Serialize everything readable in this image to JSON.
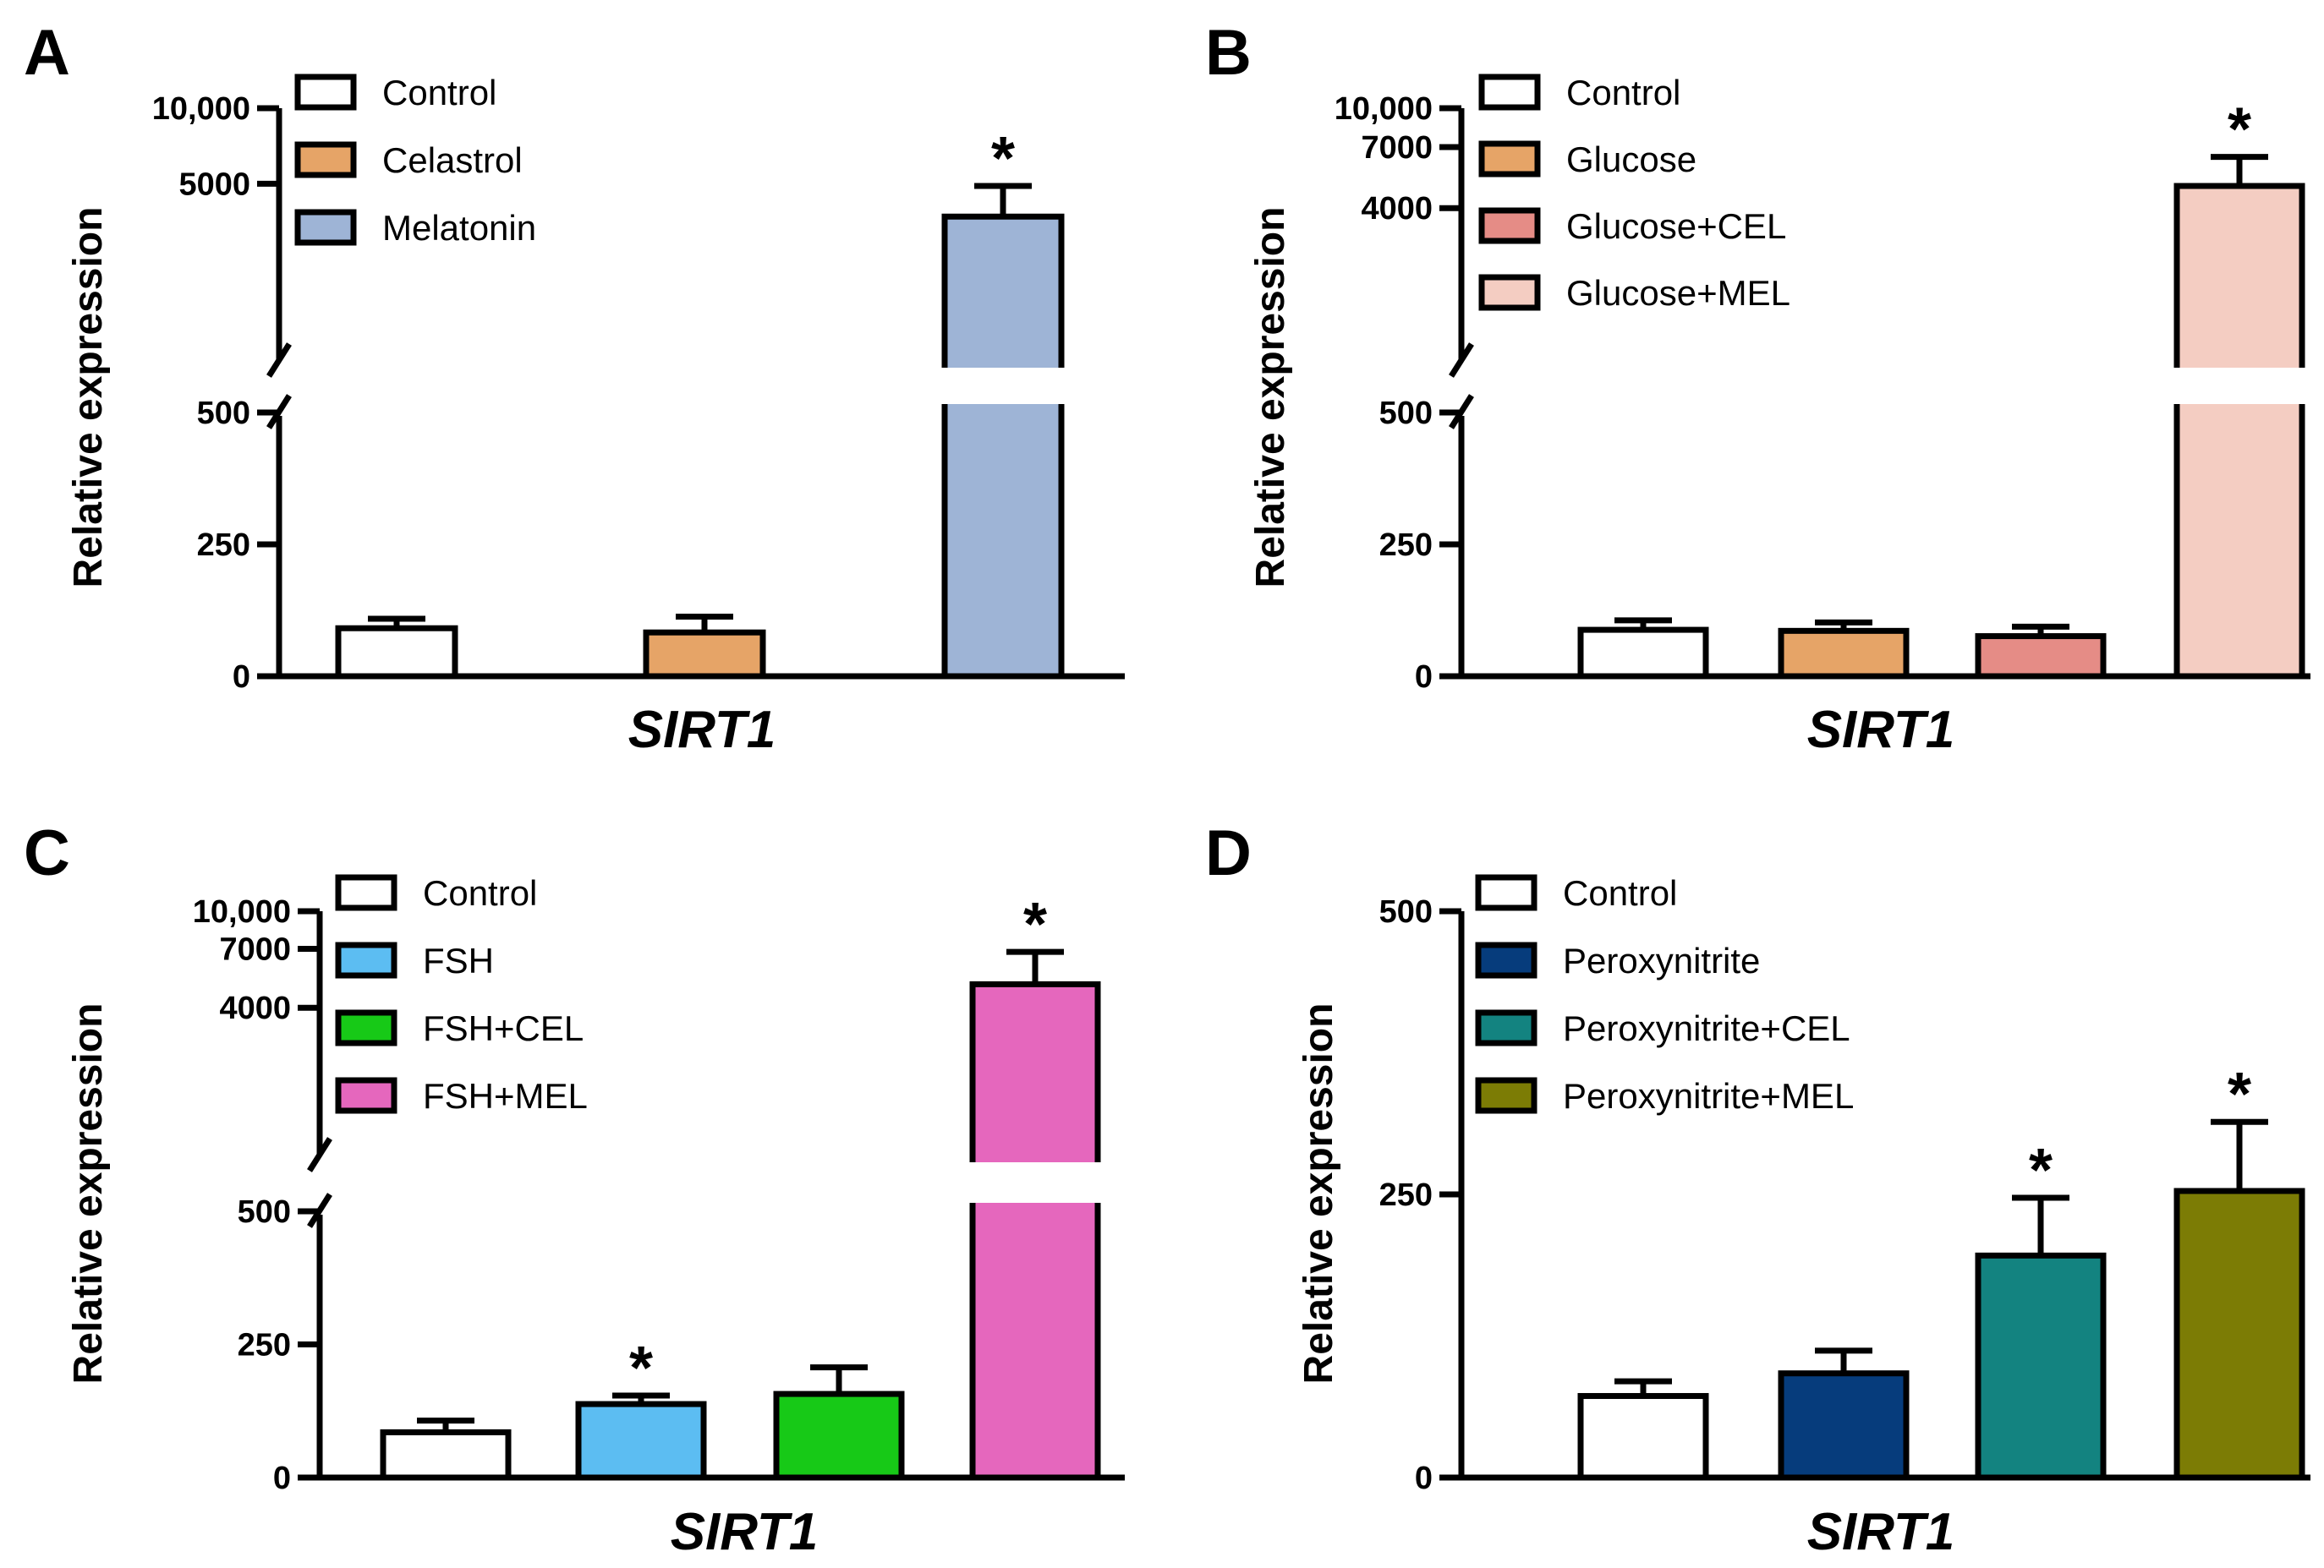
{
  "chart_data": [
    {
      "panel": "A",
      "type": "bar",
      "xlabel": "SIRT1",
      "ylabel": "Relative expression",
      "broken_axis": true,
      "lower_range": [
        0,
        500
      ],
      "lower_ticks": [
        0,
        250,
        500
      ],
      "upper_range": [
        1000,
        10000
      ],
      "upper_ticks": [
        5000,
        10000
      ],
      "upper_tick_labels": [
        "5000",
        "10,000"
      ],
      "colors": [
        "#ffffff",
        "#e6a467",
        "#9eb4d6"
      ],
      "series": [
        {
          "name": "Control",
          "value": 91,
          "error": 18,
          "sig": ""
        },
        {
          "name": "Celastrol",
          "value": 83,
          "error": 30,
          "sig": ""
        },
        {
          "name": "Melatonin",
          "value": 3700,
          "error": 1200,
          "sig": "*"
        }
      ]
    },
    {
      "panel": "B",
      "type": "bar",
      "xlabel": "SIRT1",
      "ylabel": "Relative expression",
      "broken_axis": true,
      "lower_range": [
        0,
        500
      ],
      "lower_ticks": [
        0,
        250,
        500
      ],
      "upper_range": [
        1000,
        10000
      ],
      "upper_ticks": [
        4000,
        7000,
        10000
      ],
      "upper_tick_labels": [
        "4000",
        "7000",
        "10,000"
      ],
      "colors": [
        "#ffffff",
        "#e6a467",
        "#e58c86",
        "#f4cdc2"
      ],
      "series": [
        {
          "name": "Control",
          "value": 88,
          "error": 18,
          "sig": ""
        },
        {
          "name": "Glucose",
          "value": 86,
          "error": 16,
          "sig": ""
        },
        {
          "name": "Glucose+CEL",
          "value": 76,
          "error": 18,
          "sig": ""
        },
        {
          "name": "Glucose+MEL",
          "value": 4900,
          "error": 1500,
          "sig": "*"
        }
      ]
    },
    {
      "panel": "C",
      "type": "bar",
      "xlabel": "SIRT1",
      "ylabel": "Relative expression",
      "broken_axis": true,
      "lower_range": [
        0,
        500
      ],
      "lower_ticks": [
        0,
        250,
        500
      ],
      "upper_range": [
        1000,
        10000
      ],
      "upper_ticks": [
        4000,
        7000,
        10000
      ],
      "upper_tick_labels": [
        "4000",
        "7000",
        "10,000"
      ],
      "colors": [
        "#ffffff",
        "#5cbdf2",
        "#17c917",
        "#e567bd"
      ],
      "series": [
        {
          "name": "Control",
          "value": 85,
          "error": 22,
          "sig": ""
        },
        {
          "name": "FSH",
          "value": 138,
          "error": 16,
          "sig": "*"
        },
        {
          "name": "FSH+CEL",
          "value": 157,
          "error": 50,
          "sig": ""
        },
        {
          "name": "FSH+MEL",
          "value": 5000,
          "error": 1800,
          "sig": "*"
        }
      ]
    },
    {
      "panel": "D",
      "type": "bar",
      "xlabel": "SIRT1",
      "ylabel": "Relative expression",
      "broken_axis": false,
      "lower_range": [
        0,
        500
      ],
      "lower_ticks": [
        0,
        250,
        500
      ],
      "colors": [
        "#ffffff",
        "#063c7c",
        "#138380",
        "#7c7c05"
      ],
      "series": [
        {
          "name": "Control",
          "value": 72,
          "error": 13,
          "sig": ""
        },
        {
          "name": "Peroxynitrite",
          "value": 92,
          "error": 20,
          "sig": ""
        },
        {
          "name": "Peroxynitrite+CEL",
          "value": 196,
          "error": 51,
          "sig": "*"
        },
        {
          "name": "Peroxynitrite+MEL",
          "value": 253,
          "error": 61,
          "sig": "*"
        }
      ]
    }
  ]
}
